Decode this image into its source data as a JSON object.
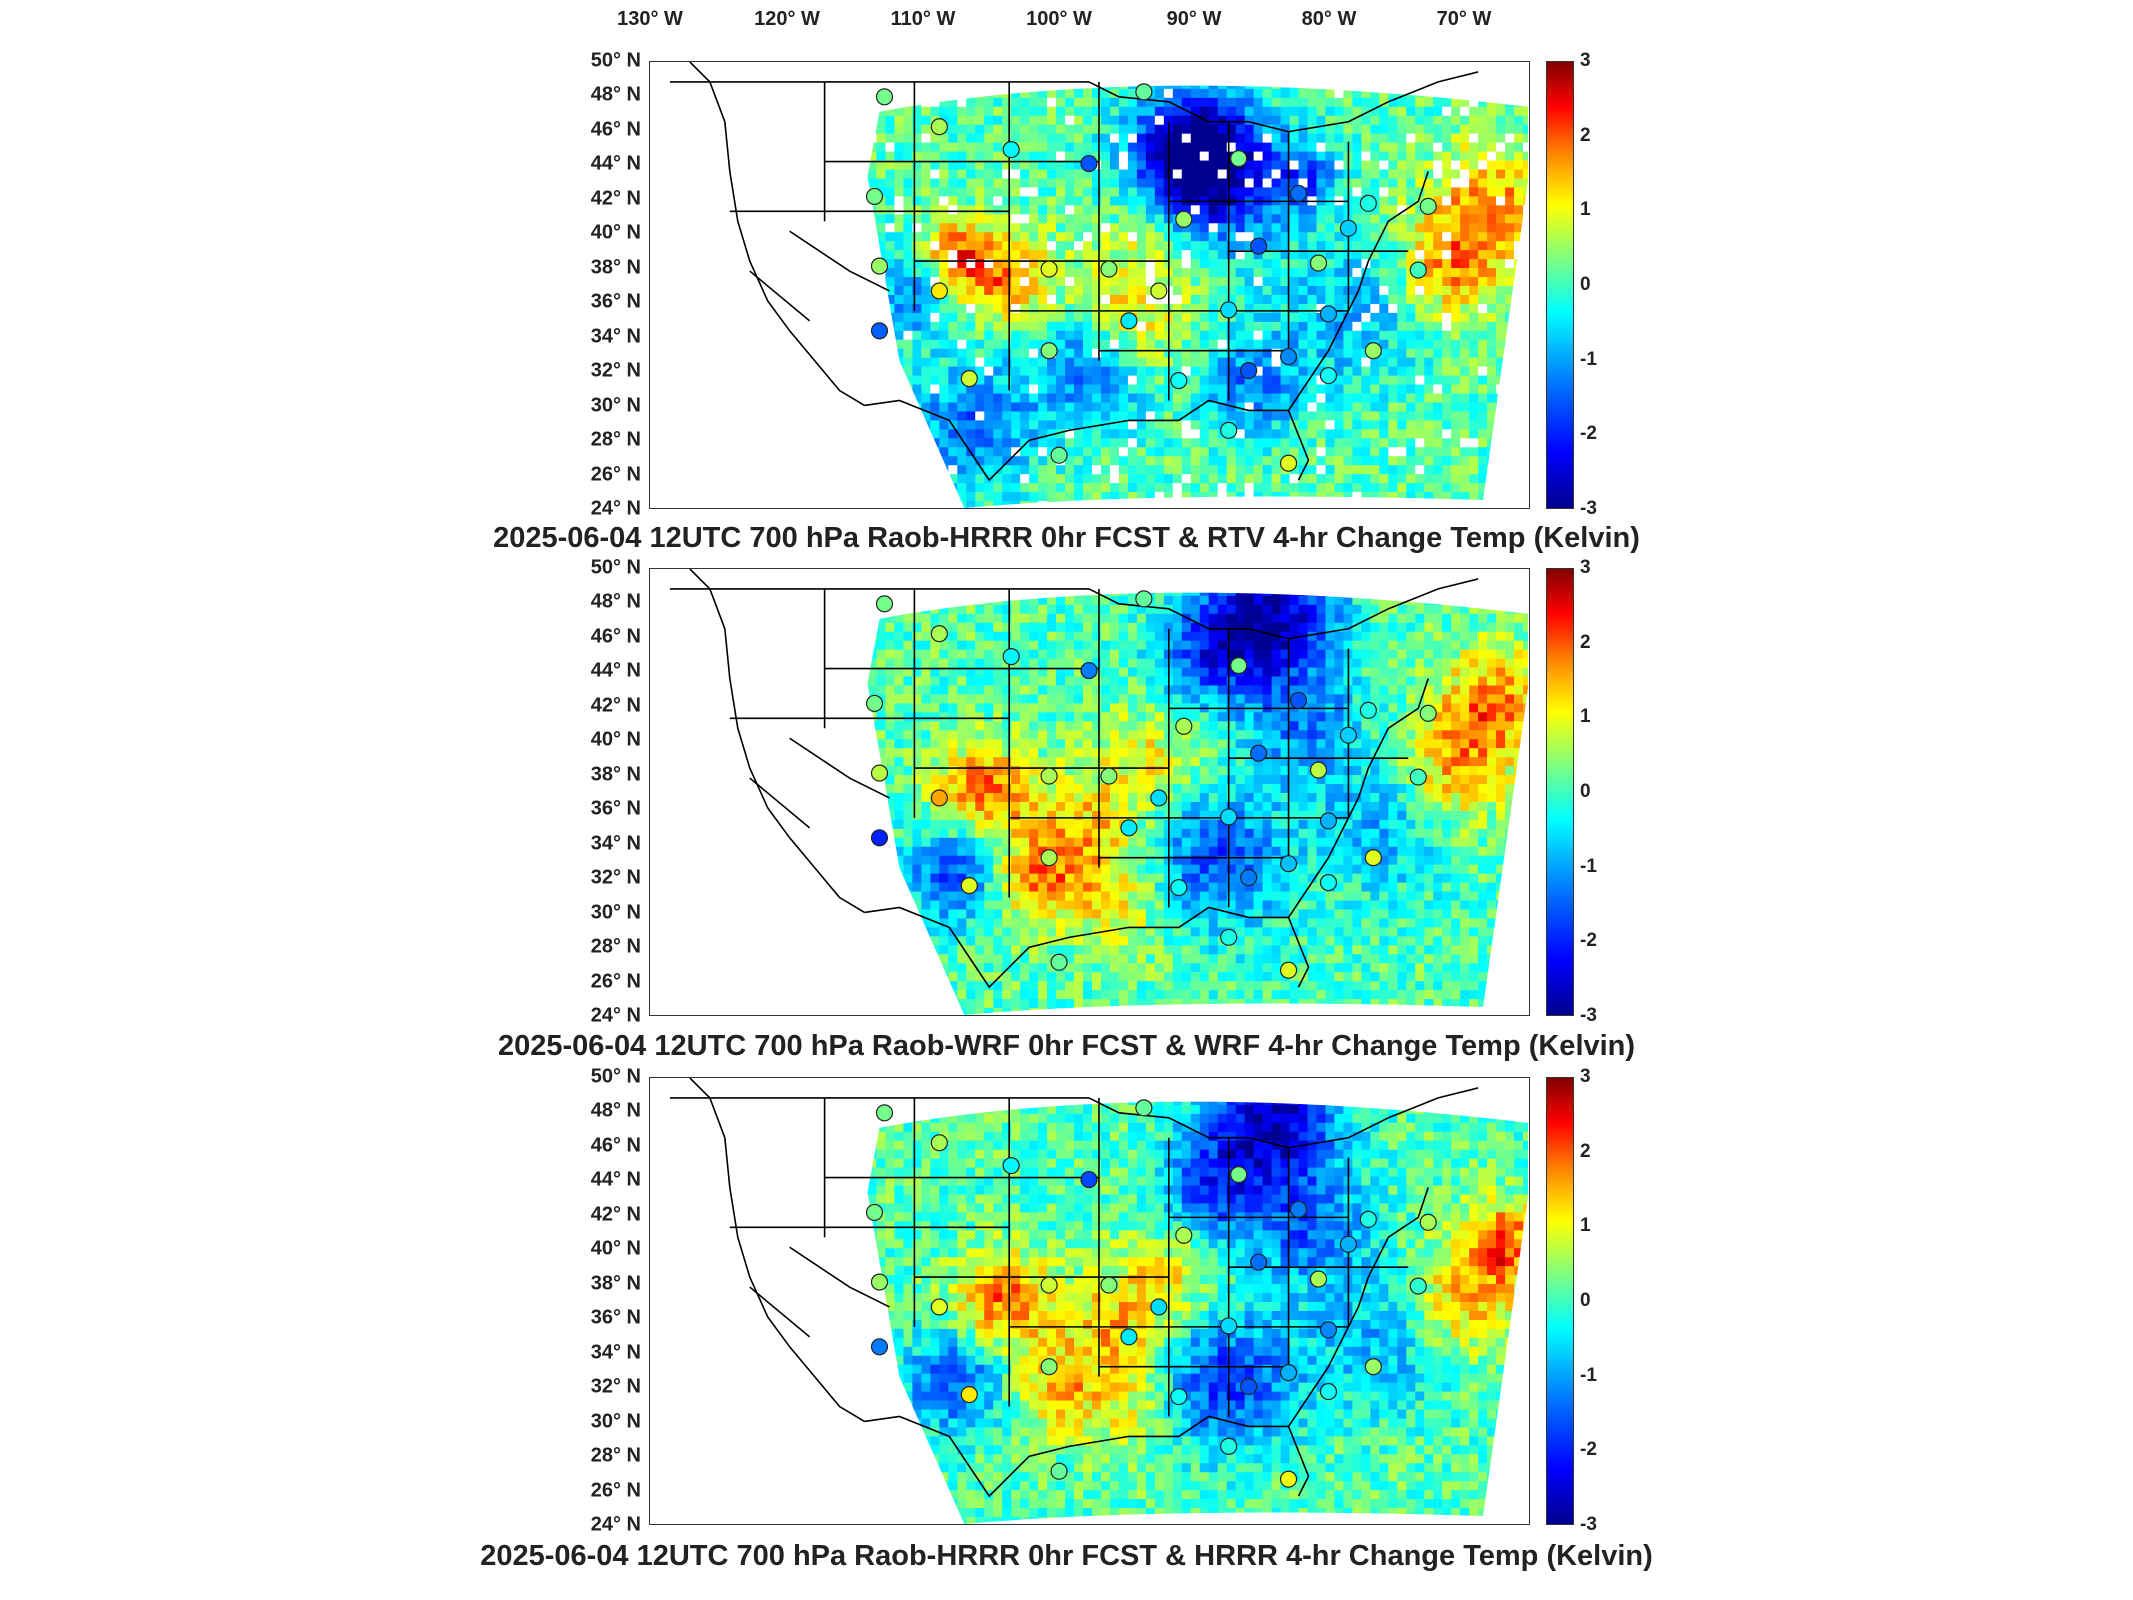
{
  "longitude_labels": [
    "130° W",
    "120° W",
    "110° W",
    "100° W",
    "90° W",
    "80° W",
    "70° W"
  ],
  "latitude_labels": [
    "50° N",
    "48° N",
    "46° N",
    "44° N",
    "42° N",
    "40° N",
    "38° N",
    "36° N",
    "34° N",
    "32° N",
    "30° N",
    "28° N",
    "26° N",
    "24° N"
  ],
  "colorbar": {
    "ticks": [
      "3",
      "2",
      "1",
      "0",
      "-1",
      "-2",
      "-3"
    ],
    "range": [
      -3,
      3
    ],
    "colormap": "jet"
  },
  "colors": {
    "very_cold": "#00008f",
    "cold": "#0050ff",
    "cool": "#00c8ff",
    "neutral": "#40ffb0",
    "warm": "#ffff00",
    "hot": "#ff8000",
    "very_hot": "#c80000",
    "missing": "#ffffff",
    "borders": "#000000"
  },
  "panels": [
    {
      "title": "2025-06-04 12UTC 700 hPa Raob-HRRR 0hr FCST & RTV 4-hr Change Temp (Kelvin)",
      "field_pattern": "rtv"
    },
    {
      "title": "2025-06-04 12UTC 700 hPa Raob-WRF 0hr FCST & WRF 4-hr Change Temp (Kelvin)",
      "field_pattern": "wrf"
    },
    {
      "title": "2025-06-04 12UTC 700 hPa Raob-HRRR 0hr FCST & HRRR 4-hr Change Temp (Kelvin)",
      "field_pattern": "hrrr"
    }
  ]
}
